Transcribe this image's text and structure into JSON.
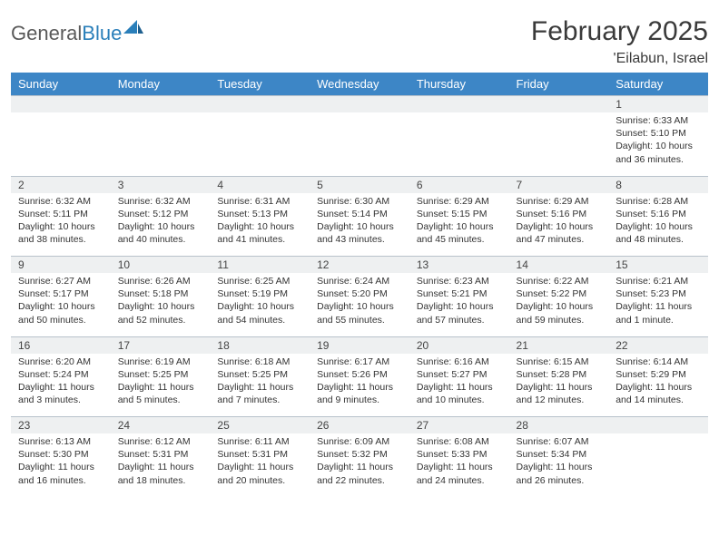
{
  "logo": {
    "part1": "General",
    "part2": "Blue"
  },
  "title": "February 2025",
  "location": "'Eilabun, Israel",
  "theme": {
    "header_bg": "#3d86c6",
    "header_fg": "#ffffff",
    "daynum_bg": "#eef0f1",
    "border": "#b8c2cb",
    "logo_gray": "#5a5a5a",
    "logo_blue": "#2a7fba"
  },
  "weekdays": [
    "Sunday",
    "Monday",
    "Tuesday",
    "Wednesday",
    "Thursday",
    "Friday",
    "Saturday"
  ],
  "weeks": [
    [
      {
        "n": "",
        "sunrise": "",
        "sunset": "",
        "daylight": ""
      },
      {
        "n": "",
        "sunrise": "",
        "sunset": "",
        "daylight": ""
      },
      {
        "n": "",
        "sunrise": "",
        "sunset": "",
        "daylight": ""
      },
      {
        "n": "",
        "sunrise": "",
        "sunset": "",
        "daylight": ""
      },
      {
        "n": "",
        "sunrise": "",
        "sunset": "",
        "daylight": ""
      },
      {
        "n": "",
        "sunrise": "",
        "sunset": "",
        "daylight": ""
      },
      {
        "n": "1",
        "sunrise": "Sunrise: 6:33 AM",
        "sunset": "Sunset: 5:10 PM",
        "daylight": "Daylight: 10 hours and 36 minutes."
      }
    ],
    [
      {
        "n": "2",
        "sunrise": "Sunrise: 6:32 AM",
        "sunset": "Sunset: 5:11 PM",
        "daylight": "Daylight: 10 hours and 38 minutes."
      },
      {
        "n": "3",
        "sunrise": "Sunrise: 6:32 AM",
        "sunset": "Sunset: 5:12 PM",
        "daylight": "Daylight: 10 hours and 40 minutes."
      },
      {
        "n": "4",
        "sunrise": "Sunrise: 6:31 AM",
        "sunset": "Sunset: 5:13 PM",
        "daylight": "Daylight: 10 hours and 41 minutes."
      },
      {
        "n": "5",
        "sunrise": "Sunrise: 6:30 AM",
        "sunset": "Sunset: 5:14 PM",
        "daylight": "Daylight: 10 hours and 43 minutes."
      },
      {
        "n": "6",
        "sunrise": "Sunrise: 6:29 AM",
        "sunset": "Sunset: 5:15 PM",
        "daylight": "Daylight: 10 hours and 45 minutes."
      },
      {
        "n": "7",
        "sunrise": "Sunrise: 6:29 AM",
        "sunset": "Sunset: 5:16 PM",
        "daylight": "Daylight: 10 hours and 47 minutes."
      },
      {
        "n": "8",
        "sunrise": "Sunrise: 6:28 AM",
        "sunset": "Sunset: 5:16 PM",
        "daylight": "Daylight: 10 hours and 48 minutes."
      }
    ],
    [
      {
        "n": "9",
        "sunrise": "Sunrise: 6:27 AM",
        "sunset": "Sunset: 5:17 PM",
        "daylight": "Daylight: 10 hours and 50 minutes."
      },
      {
        "n": "10",
        "sunrise": "Sunrise: 6:26 AM",
        "sunset": "Sunset: 5:18 PM",
        "daylight": "Daylight: 10 hours and 52 minutes."
      },
      {
        "n": "11",
        "sunrise": "Sunrise: 6:25 AM",
        "sunset": "Sunset: 5:19 PM",
        "daylight": "Daylight: 10 hours and 54 minutes."
      },
      {
        "n": "12",
        "sunrise": "Sunrise: 6:24 AM",
        "sunset": "Sunset: 5:20 PM",
        "daylight": "Daylight: 10 hours and 55 minutes."
      },
      {
        "n": "13",
        "sunrise": "Sunrise: 6:23 AM",
        "sunset": "Sunset: 5:21 PM",
        "daylight": "Daylight: 10 hours and 57 minutes."
      },
      {
        "n": "14",
        "sunrise": "Sunrise: 6:22 AM",
        "sunset": "Sunset: 5:22 PM",
        "daylight": "Daylight: 10 hours and 59 minutes."
      },
      {
        "n": "15",
        "sunrise": "Sunrise: 6:21 AM",
        "sunset": "Sunset: 5:23 PM",
        "daylight": "Daylight: 11 hours and 1 minute."
      }
    ],
    [
      {
        "n": "16",
        "sunrise": "Sunrise: 6:20 AM",
        "sunset": "Sunset: 5:24 PM",
        "daylight": "Daylight: 11 hours and 3 minutes."
      },
      {
        "n": "17",
        "sunrise": "Sunrise: 6:19 AM",
        "sunset": "Sunset: 5:25 PM",
        "daylight": "Daylight: 11 hours and 5 minutes."
      },
      {
        "n": "18",
        "sunrise": "Sunrise: 6:18 AM",
        "sunset": "Sunset: 5:25 PM",
        "daylight": "Daylight: 11 hours and 7 minutes."
      },
      {
        "n": "19",
        "sunrise": "Sunrise: 6:17 AM",
        "sunset": "Sunset: 5:26 PM",
        "daylight": "Daylight: 11 hours and 9 minutes."
      },
      {
        "n": "20",
        "sunrise": "Sunrise: 6:16 AM",
        "sunset": "Sunset: 5:27 PM",
        "daylight": "Daylight: 11 hours and 10 minutes."
      },
      {
        "n": "21",
        "sunrise": "Sunrise: 6:15 AM",
        "sunset": "Sunset: 5:28 PM",
        "daylight": "Daylight: 11 hours and 12 minutes."
      },
      {
        "n": "22",
        "sunrise": "Sunrise: 6:14 AM",
        "sunset": "Sunset: 5:29 PM",
        "daylight": "Daylight: 11 hours and 14 minutes."
      }
    ],
    [
      {
        "n": "23",
        "sunrise": "Sunrise: 6:13 AM",
        "sunset": "Sunset: 5:30 PM",
        "daylight": "Daylight: 11 hours and 16 minutes."
      },
      {
        "n": "24",
        "sunrise": "Sunrise: 6:12 AM",
        "sunset": "Sunset: 5:31 PM",
        "daylight": "Daylight: 11 hours and 18 minutes."
      },
      {
        "n": "25",
        "sunrise": "Sunrise: 6:11 AM",
        "sunset": "Sunset: 5:31 PM",
        "daylight": "Daylight: 11 hours and 20 minutes."
      },
      {
        "n": "26",
        "sunrise": "Sunrise: 6:09 AM",
        "sunset": "Sunset: 5:32 PM",
        "daylight": "Daylight: 11 hours and 22 minutes."
      },
      {
        "n": "27",
        "sunrise": "Sunrise: 6:08 AM",
        "sunset": "Sunset: 5:33 PM",
        "daylight": "Daylight: 11 hours and 24 minutes."
      },
      {
        "n": "28",
        "sunrise": "Sunrise: 6:07 AM",
        "sunset": "Sunset: 5:34 PM",
        "daylight": "Daylight: 11 hours and 26 minutes."
      },
      {
        "n": "",
        "sunrise": "",
        "sunset": "",
        "daylight": ""
      }
    ]
  ]
}
